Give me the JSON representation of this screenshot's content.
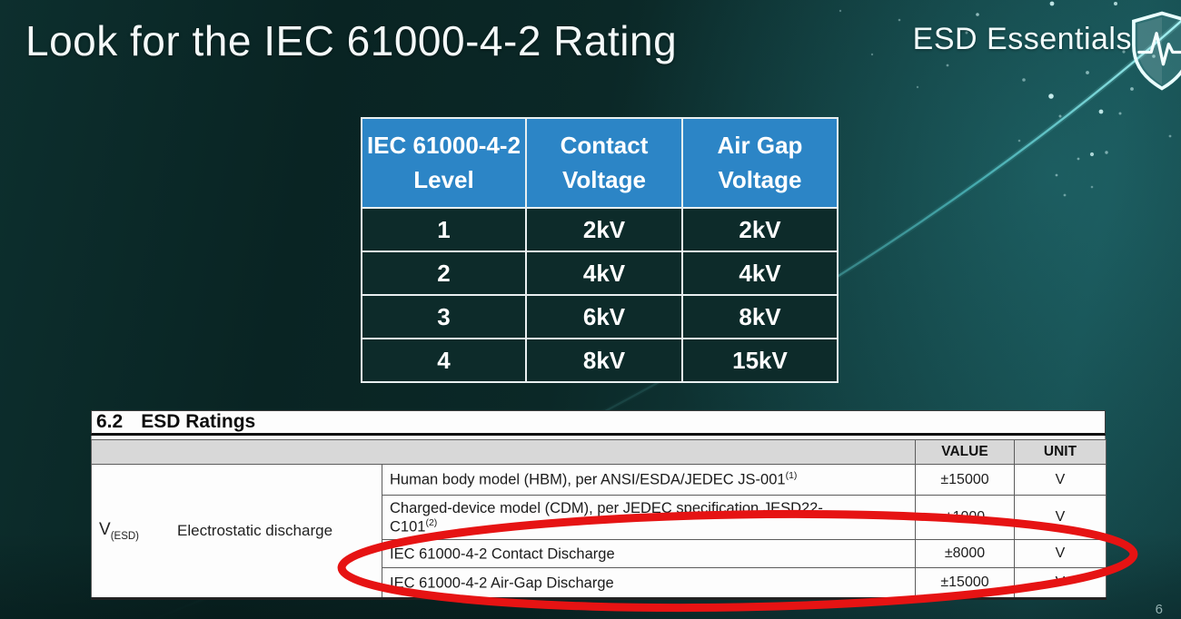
{
  "slide": {
    "title": "Look for the IEC 61000-4-2 Rating",
    "brand": "ESD Essentials",
    "page_number": "6"
  },
  "level_table": {
    "headers": [
      "IEC 61000-4-2\nLevel",
      "Contact\nVoltage",
      "Air Gap\nVoltage"
    ],
    "rows": [
      [
        "1",
        "2kV",
        "2kV"
      ],
      [
        "2",
        "4kV",
        "4kV"
      ],
      [
        "3",
        "6kV",
        "8kV"
      ],
      [
        "4",
        "8kV",
        "15kV"
      ]
    ],
    "header_bg": "#2c85c6",
    "body_bg": "#0d2b2a"
  },
  "datasheet": {
    "section": "6.2",
    "section_title": "ESD Ratings",
    "symbol": "V",
    "symbol_sub": "(ESD)",
    "parameter": "Electrostatic discharge",
    "value_header": "VALUE",
    "unit_header": "UNIT",
    "rows": [
      {
        "desc": "Human body model (HBM), per ANSI/ESDA/JEDEC JS-001",
        "sup": "(1)",
        "value": "±15000",
        "unit": "V"
      },
      {
        "desc": "Charged-device model (CDM), per JEDEC specification JESD22-\nC101",
        "sup": "(2)",
        "value": "±1000",
        "unit": "V"
      },
      {
        "desc": "IEC 61000-4-2 Contact Discharge",
        "sup": "",
        "value": "±8000",
        "unit": "V"
      },
      {
        "desc": "IEC 61000-4-2 Air-Gap Discharge",
        "sup": "",
        "value": "±15000",
        "unit": "V"
      }
    ]
  },
  "colors": {
    "background_teal": "#0b2827",
    "accent_cyan": "#5fe0e4",
    "highlight_red": "#e61313",
    "table_header_blue": "#2c85c6",
    "datasheet_header_gray": "#d8d8d8"
  }
}
